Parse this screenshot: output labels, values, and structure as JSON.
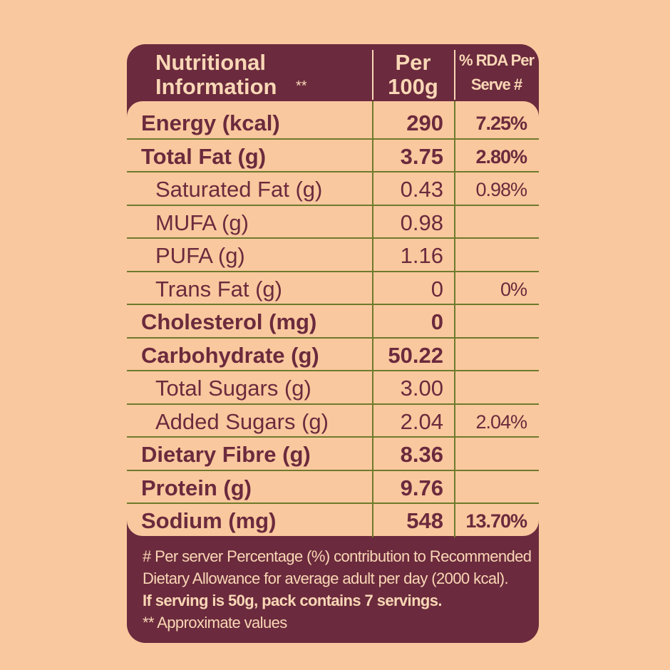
{
  "header": {
    "nutrient": [
      "Nutritional",
      "Information"
    ],
    "marker": "**",
    "per_100g": [
      "Per",
      "100g"
    ],
    "rda": [
      "% RDA Per",
      "Serve #"
    ]
  },
  "table": {
    "rows": [
      {
        "label": "Energy (kcal)",
        "per_100g": "290",
        "rda": "7.25%"
      },
      {
        "label": "Total Fat (g)",
        "per_100g": "3.75",
        "rda": "2.80%"
      },
      {
        "label": "Saturated Fat (g)",
        "per_100g": "0.43",
        "rda": "0.98%",
        "sub": true
      },
      {
        "label": "MUFA (g)",
        "per_100g": "0.98",
        "sub": true
      },
      {
        "label": "PUFA (g)",
        "per_100g": "1.16",
        "sub": true
      },
      {
        "label": "Trans Fat (g)",
        "per_100g": "0",
        "rda": "0%",
        "sub": true
      },
      {
        "label": "Cholesterol (mg)",
        "per_100g": "0"
      },
      {
        "label": "Carbohydrate (g)",
        "per_100g": "50.22"
      },
      {
        "label": "Total Sugars (g)",
        "per_100g": "3.00",
        "sub": true
      },
      {
        "label": "Added Sugars (g)",
        "per_100g": "2.04",
        "rda": "2.04%",
        "sub": true
      },
      {
        "label": "Dietary Fibre (g)",
        "per_100g": "8.36"
      },
      {
        "label": "Protein (g)",
        "per_100g": "9.76"
      },
      {
        "label": "Sodium (mg)",
        "per_100g": "548",
        "rda": "13.70%"
      }
    ]
  },
  "footer": {
    "lines": [
      {
        "text": "# Per server Percentage (%) contribution to Recommended"
      },
      {
        "text": "Dietary Allowance for average adult per day (2000 kcal)."
      },
      {
        "text": "If serving is 50g, pack contains 7 servings.",
        "bold": true
      },
      {
        "text": "** Approximate values"
      }
    ]
  }
}
